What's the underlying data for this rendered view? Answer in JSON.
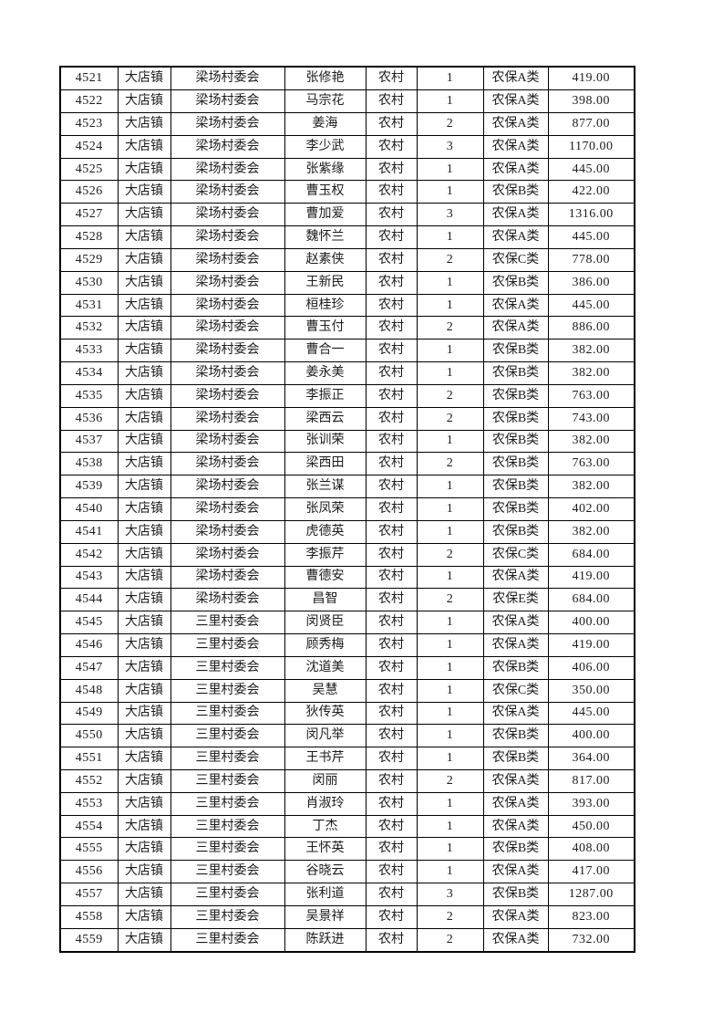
{
  "colors": {
    "page_bg": "#ffffff",
    "border": "#000000",
    "text": "#1c1c1c"
  },
  "table": {
    "column_keys": [
      "serial",
      "town",
      "village",
      "person_name",
      "residence_type",
      "person_count",
      "insurance_category",
      "amount"
    ],
    "rows": [
      [
        "4521",
        "大店镇",
        "梁场村委会",
        "张修艳",
        "农村",
        "1",
        "农保A类",
        "419.00"
      ],
      [
        "4522",
        "大店镇",
        "梁场村委会",
        "马宗花",
        "农村",
        "1",
        "农保A类",
        "398.00"
      ],
      [
        "4523",
        "大店镇",
        "梁场村委会",
        "姜海",
        "农村",
        "2",
        "农保A类",
        "877.00"
      ],
      [
        "4524",
        "大店镇",
        "梁场村委会",
        "李少武",
        "农村",
        "3",
        "农保A类",
        "1170.00"
      ],
      [
        "4525",
        "大店镇",
        "梁场村委会",
        "张紫缘",
        "农村",
        "1",
        "农保A类",
        "445.00"
      ],
      [
        "4526",
        "大店镇",
        "梁场村委会",
        "曹玉权",
        "农村",
        "1",
        "农保B类",
        "422.00"
      ],
      [
        "4527",
        "大店镇",
        "梁场村委会",
        "曹加爱",
        "农村",
        "3",
        "农保A类",
        "1316.00"
      ],
      [
        "4528",
        "大店镇",
        "梁场村委会",
        "魏怀兰",
        "农村",
        "1",
        "农保A类",
        "445.00"
      ],
      [
        "4529",
        "大店镇",
        "梁场村委会",
        "赵素侠",
        "农村",
        "2",
        "农保C类",
        "778.00"
      ],
      [
        "4530",
        "大店镇",
        "梁场村委会",
        "王新民",
        "农村",
        "1",
        "农保B类",
        "386.00"
      ],
      [
        "4531",
        "大店镇",
        "梁场村委会",
        "桓桂珍",
        "农村",
        "1",
        "农保A类",
        "445.00"
      ],
      [
        "4532",
        "大店镇",
        "梁场村委会",
        "曹玉付",
        "农村",
        "2",
        "农保A类",
        "886.00"
      ],
      [
        "4533",
        "大店镇",
        "梁场村委会",
        "曹合一",
        "农村",
        "1",
        "农保B类",
        "382.00"
      ],
      [
        "4534",
        "大店镇",
        "梁场村委会",
        "姜永美",
        "农村",
        "1",
        "农保B类",
        "382.00"
      ],
      [
        "4535",
        "大店镇",
        "梁场村委会",
        "李振正",
        "农村",
        "2",
        "农保B类",
        "763.00"
      ],
      [
        "4536",
        "大店镇",
        "梁场村委会",
        "梁西云",
        "农村",
        "2",
        "农保B类",
        "743.00"
      ],
      [
        "4537",
        "大店镇",
        "梁场村委会",
        "张训荣",
        "农村",
        "1",
        "农保B类",
        "382.00"
      ],
      [
        "4538",
        "大店镇",
        "梁场村委会",
        "梁西田",
        "农村",
        "2",
        "农保B类",
        "763.00"
      ],
      [
        "4539",
        "大店镇",
        "梁场村委会",
        "张兰谋",
        "农村",
        "1",
        "农保B类",
        "382.00"
      ],
      [
        "4540",
        "大店镇",
        "梁场村委会",
        "张凤荣",
        "农村",
        "1",
        "农保B类",
        "402.00"
      ],
      [
        "4541",
        "大店镇",
        "梁场村委会",
        "虎德英",
        "农村",
        "1",
        "农保B类",
        "382.00"
      ],
      [
        "4542",
        "大店镇",
        "梁场村委会",
        "李振芹",
        "农村",
        "2",
        "农保C类",
        "684.00"
      ],
      [
        "4543",
        "大店镇",
        "梁场村委会",
        "曹德安",
        "农村",
        "1",
        "农保A类",
        "419.00"
      ],
      [
        "4544",
        "大店镇",
        "梁场村委会",
        "昌智",
        "农村",
        "2",
        "农保E类",
        "684.00"
      ],
      [
        "4545",
        "大店镇",
        "三里村委会",
        "闵贤臣",
        "农村",
        "1",
        "农保A类",
        "400.00"
      ],
      [
        "4546",
        "大店镇",
        "三里村委会",
        "顾秀梅",
        "农村",
        "1",
        "农保A类",
        "419.00"
      ],
      [
        "4547",
        "大店镇",
        "三里村委会",
        "沈道美",
        "农村",
        "1",
        "农保B类",
        "406.00"
      ],
      [
        "4548",
        "大店镇",
        "三里村委会",
        "吴慧",
        "农村",
        "1",
        "农保C类",
        "350.00"
      ],
      [
        "4549",
        "大店镇",
        "三里村委会",
        "狄传英",
        "农村",
        "1",
        "农保A类",
        "445.00"
      ],
      [
        "4550",
        "大店镇",
        "三里村委会",
        "闵凡举",
        "农村",
        "1",
        "农保B类",
        "400.00"
      ],
      [
        "4551",
        "大店镇",
        "三里村委会",
        "王书芹",
        "农村",
        "1",
        "农保B类",
        "364.00"
      ],
      [
        "4552",
        "大店镇",
        "三里村委会",
        "闵丽",
        "农村",
        "2",
        "农保A类",
        "817.00"
      ],
      [
        "4553",
        "大店镇",
        "三里村委会",
        "肖淑玲",
        "农村",
        "1",
        "农保A类",
        "393.00"
      ],
      [
        "4554",
        "大店镇",
        "三里村委会",
        "丁杰",
        "农村",
        "1",
        "农保A类",
        "450.00"
      ],
      [
        "4555",
        "大店镇",
        "三里村委会",
        "王怀英",
        "农村",
        "1",
        "农保B类",
        "408.00"
      ],
      [
        "4556",
        "大店镇",
        "三里村委会",
        "谷晓云",
        "农村",
        "1",
        "农保A类",
        "417.00"
      ],
      [
        "4557",
        "大店镇",
        "三里村委会",
        "张利道",
        "农村",
        "3",
        "农保B类",
        "1287.00"
      ],
      [
        "4558",
        "大店镇",
        "三里村委会",
        "吴景祥",
        "农村",
        "2",
        "农保A类",
        "823.00"
      ],
      [
        "4559",
        "大店镇",
        "三里村委会",
        "陈跃进",
        "农村",
        "2",
        "农保A类",
        "732.00"
      ]
    ]
  }
}
